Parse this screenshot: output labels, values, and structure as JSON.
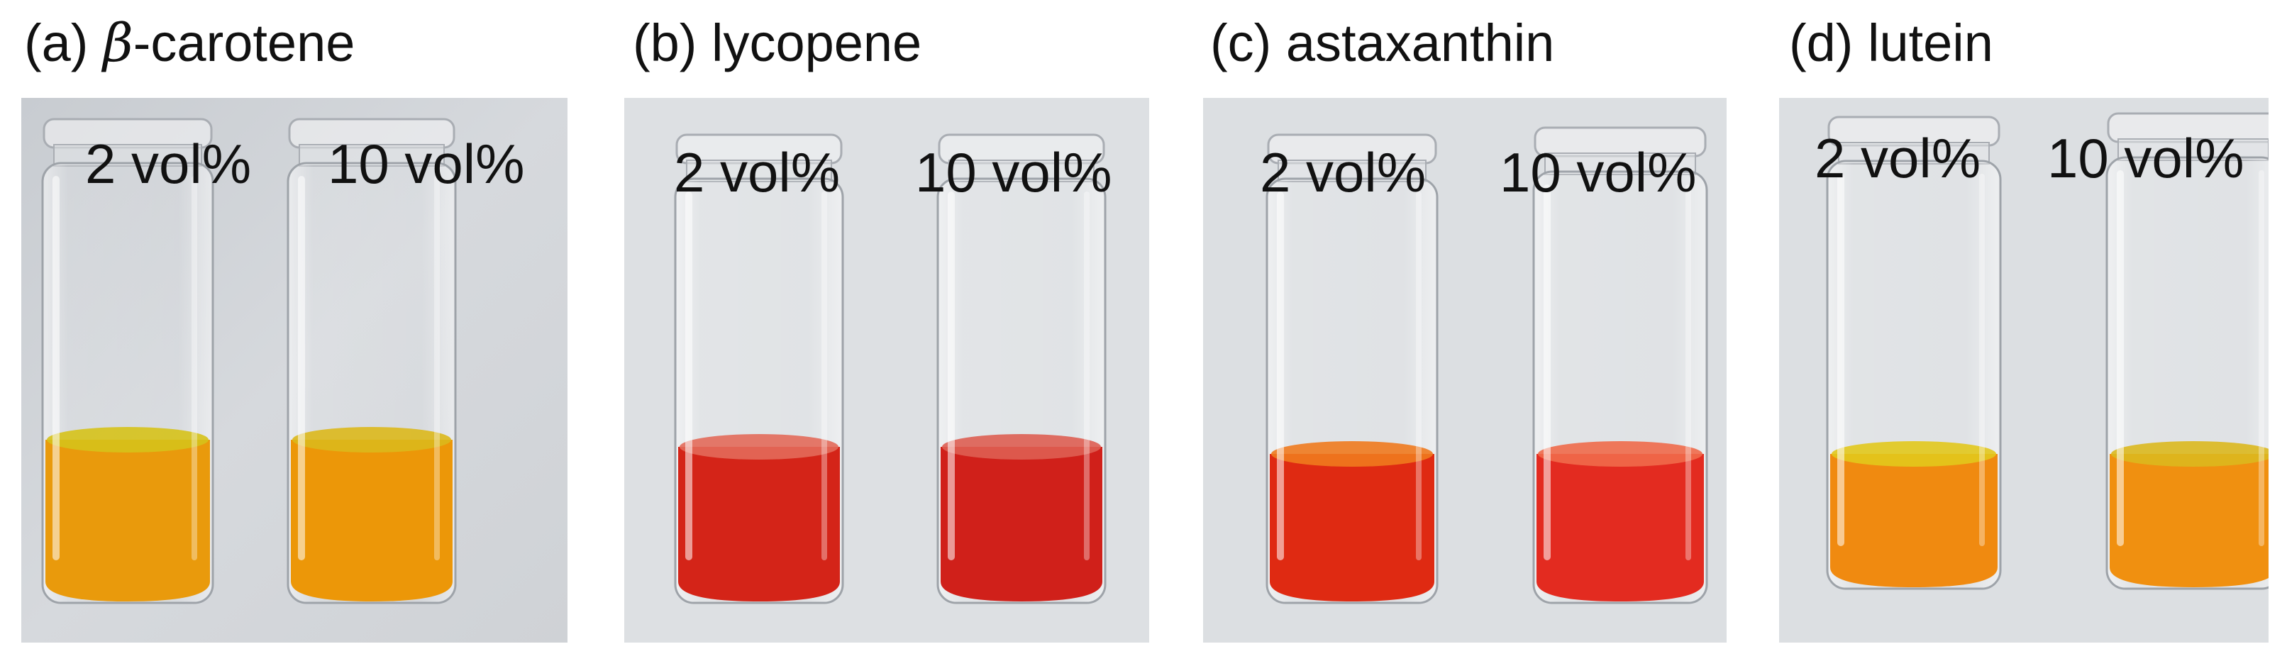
{
  "panels": [
    {
      "label": "(a) ",
      "label_greek": "β",
      "label_rest": "-carotene",
      "samples": [
        {
          "concentration": "2 vol%",
          "liquid_color": "#e99a0c",
          "surface_color": "#d6c21a"
        },
        {
          "concentration": "10 vol%",
          "liquid_color": "#ec9708",
          "surface_color": "#dcb81c"
        }
      ],
      "background": "#d4d7db"
    },
    {
      "label": "(b) lycopene",
      "samples": [
        {
          "concentration": "2 vol%",
          "liquid_color": "#d42418",
          "surface_color": "#e36a5a"
        },
        {
          "concentration": "10 vol%",
          "liquid_color": "#d0201a",
          "surface_color": "#de5e52"
        }
      ],
      "background": "#dde0e3"
    },
    {
      "label": "(c) astaxanthin",
      "samples": [
        {
          "concentration": "2 vol%",
          "liquid_color": "#df2a12",
          "surface_color": "#f07a1e"
        },
        {
          "concentration": "10 vol%",
          "liquid_color": "#e32b20",
          "surface_color": "#ef6a4a"
        }
      ],
      "background": "#dcdfe2"
    },
    {
      "label": "(d) lutein",
      "samples": [
        {
          "concentration": "2 vol%",
          "liquid_color": "#f08a10",
          "surface_color": "#e2c81c"
        },
        {
          "concentration": "10 vol%",
          "liquid_color": "#f09010",
          "surface_color": "#dcb81e"
        }
      ],
      "background": "#dcdfe2"
    }
  ]
}
